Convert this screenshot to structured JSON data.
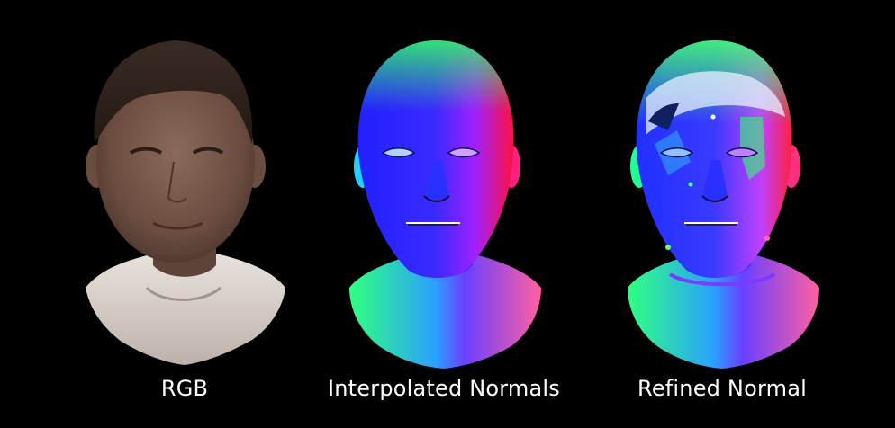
{
  "figure": {
    "panels": [
      {
        "caption": "RGB",
        "kind": "photo"
      },
      {
        "caption": "Interpolated Normals",
        "kind": "normal-map"
      },
      {
        "caption": "Refined Normal",
        "kind": "normal-map-refined"
      }
    ]
  }
}
